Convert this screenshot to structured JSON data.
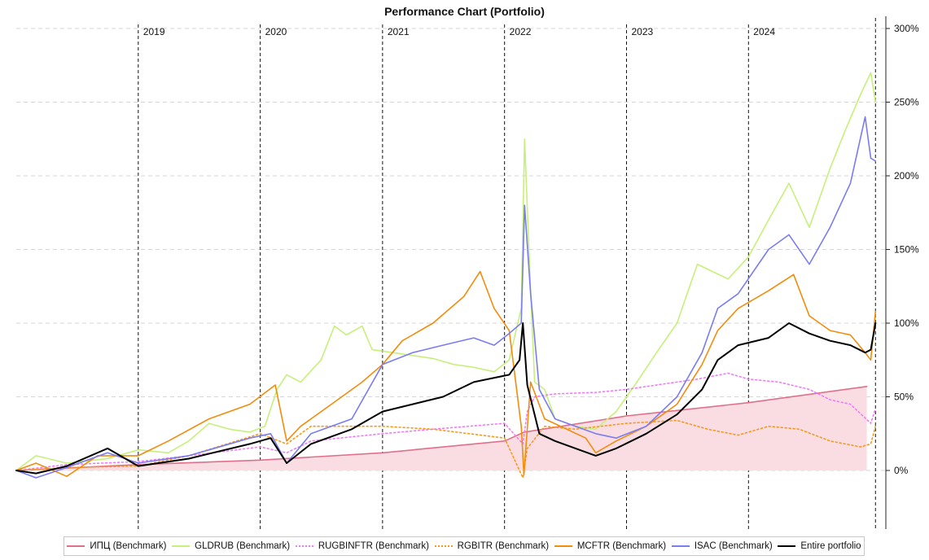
{
  "chart_data": {
    "type": "line",
    "title": "Performance Chart (Portfolio)",
    "x_range": [
      "2018-01-01",
      "2025-02-15"
    ],
    "ylim": [
      -40,
      300
    ],
    "y_ticks": [
      0,
      50,
      100,
      150,
      200,
      250,
      300
    ],
    "y_tick_labels": [
      "0%",
      "50%",
      "100%",
      "150%",
      "200%",
      "250%",
      "300%"
    ],
    "y_unit": "%",
    "year_markers": [
      {
        "label": "2019",
        "date": "2019-01-01"
      },
      {
        "label": "2020",
        "date": "2020-01-01"
      },
      {
        "label": "2021",
        "date": "2021-01-01"
      },
      {
        "label": "2022",
        "date": "2022-01-01"
      },
      {
        "label": "2023",
        "date": "2023-01-01"
      },
      {
        "label": "2024",
        "date": "2024-01-01"
      }
    ],
    "end_marker_date": "2025-01-15",
    "grid": true,
    "legend_position": "bottom",
    "series": [
      {
        "name": "ИПЦ (Benchmark)",
        "color": "#e0708a",
        "style": "solid",
        "fill": "#f9dde3",
        "points": [
          [
            "2018-01-01",
            0
          ],
          [
            "2019-01-01",
            4
          ],
          [
            "2020-01-01",
            7
          ],
          [
            "2021-01-01",
            12
          ],
          [
            "2022-01-01",
            20
          ],
          [
            "2022-03-01",
            26
          ],
          [
            "2023-01-01",
            37
          ],
          [
            "2024-01-01",
            46
          ],
          [
            "2024-12-20",
            57
          ]
        ]
      },
      {
        "name": "GLDRUB (Benchmark)",
        "color": "#c6f07a",
        "style": "solid",
        "points": [
          [
            "2018-01-01",
            0
          ],
          [
            "2018-03-01",
            10
          ],
          [
            "2018-06-01",
            5
          ],
          [
            "2018-10-01",
            8
          ],
          [
            "2019-01-01",
            14
          ],
          [
            "2019-04-01",
            12
          ],
          [
            "2019-06-01",
            20
          ],
          [
            "2019-08-01",
            32
          ],
          [
            "2019-10-01",
            28
          ],
          [
            "2019-12-01",
            26
          ],
          [
            "2020-01-15",
            30
          ],
          [
            "2020-02-20",
            55
          ],
          [
            "2020-03-20",
            65
          ],
          [
            "2020-05-01",
            60
          ],
          [
            "2020-07-01",
            75
          ],
          [
            "2020-08-10",
            98
          ],
          [
            "2020-09-15",
            92
          ],
          [
            "2020-11-01",
            98
          ],
          [
            "2020-12-01",
            82
          ],
          [
            "2021-02-01",
            80
          ],
          [
            "2021-04-01",
            78
          ],
          [
            "2021-06-01",
            76
          ],
          [
            "2021-08-01",
            72
          ],
          [
            "2021-10-01",
            70
          ],
          [
            "2021-12-01",
            67
          ],
          [
            "2022-01-15",
            75
          ],
          [
            "2022-02-20",
            110
          ],
          [
            "2022-03-02",
            225
          ],
          [
            "2022-03-15",
            150
          ],
          [
            "2022-04-01",
            60
          ],
          [
            "2022-05-01",
            55
          ],
          [
            "2022-06-01",
            35
          ],
          [
            "2022-08-01",
            30
          ],
          [
            "2022-10-01",
            28
          ],
          [
            "2022-12-01",
            40
          ],
          [
            "2023-02-01",
            60
          ],
          [
            "2023-04-01",
            80
          ],
          [
            "2023-06-01",
            100
          ],
          [
            "2023-08-01",
            140
          ],
          [
            "2023-09-15",
            135
          ],
          [
            "2023-11-01",
            130
          ],
          [
            "2024-01-01",
            145
          ],
          [
            "2024-03-01",
            170
          ],
          [
            "2024-05-01",
            195
          ],
          [
            "2024-07-01",
            165
          ],
          [
            "2024-09-01",
            205
          ],
          [
            "2024-10-15",
            230
          ],
          [
            "2024-12-01",
            255
          ],
          [
            "2025-01-01",
            270
          ],
          [
            "2025-01-15",
            250
          ]
        ]
      },
      {
        "name": "RUGBINFTR (Benchmark)",
        "color": "#f07cf5",
        "style": "dotted",
        "points": [
          [
            "2018-01-01",
            0
          ],
          [
            "2018-06-01",
            4
          ],
          [
            "2019-01-01",
            6
          ],
          [
            "2019-06-01",
            10
          ],
          [
            "2020-01-01",
            16
          ],
          [
            "2020-03-20",
            12
          ],
          [
            "2020-06-01",
            20
          ],
          [
            "2021-01-01",
            25
          ],
          [
            "2021-06-01",
            28
          ],
          [
            "2022-01-01",
            32
          ],
          [
            "2022-02-25",
            18
          ],
          [
            "2022-03-10",
            40
          ],
          [
            "2022-04-01",
            50
          ],
          [
            "2022-06-01",
            52
          ],
          [
            "2022-10-01",
            53
          ],
          [
            "2023-01-01",
            55
          ],
          [
            "2023-04-01",
            58
          ],
          [
            "2023-08-01",
            62
          ],
          [
            "2023-11-01",
            66
          ],
          [
            "2024-01-01",
            62
          ],
          [
            "2024-04-01",
            60
          ],
          [
            "2024-07-01",
            55
          ],
          [
            "2024-09-01",
            48
          ],
          [
            "2024-11-01",
            45
          ],
          [
            "2025-01-01",
            32
          ],
          [
            "2025-01-15",
            42
          ]
        ]
      },
      {
        "name": "RGBITR (Benchmark)",
        "color": "#f59a1e",
        "style": "dotted",
        "points": [
          [
            "2018-01-01",
            0
          ],
          [
            "2018-06-01",
            2
          ],
          [
            "2019-01-01",
            3
          ],
          [
            "2019-06-01",
            10
          ],
          [
            "2020-01-01",
            25
          ],
          [
            "2020-03-20",
            18
          ],
          [
            "2020-06-01",
            30
          ],
          [
            "2021-01-01",
            30
          ],
          [
            "2021-06-01",
            28
          ],
          [
            "2022-01-01",
            22
          ],
          [
            "2022-02-25",
            -5
          ],
          [
            "2022-03-10",
            15
          ],
          [
            "2022-05-01",
            30
          ],
          [
            "2022-08-01",
            28
          ],
          [
            "2023-01-01",
            32
          ],
          [
            "2023-06-01",
            34
          ],
          [
            "2023-09-01",
            28
          ],
          [
            "2023-12-01",
            24
          ],
          [
            "2024-03-01",
            30
          ],
          [
            "2024-06-01",
            28
          ],
          [
            "2024-09-01",
            20
          ],
          [
            "2024-12-01",
            16
          ],
          [
            "2025-01-01",
            18
          ],
          [
            "2025-01-15",
            30
          ]
        ]
      },
      {
        "name": "MCFTR (Benchmark)",
        "color": "#f28c0c",
        "style": "solid",
        "points": [
          [
            "2018-01-01",
            0
          ],
          [
            "2018-03-01",
            5
          ],
          [
            "2018-06-01",
            -4
          ],
          [
            "2018-09-01",
            10
          ],
          [
            "2019-01-01",
            10
          ],
          [
            "2019-04-01",
            20
          ],
          [
            "2019-08-01",
            35
          ],
          [
            "2019-12-01",
            45
          ],
          [
            "2020-02-15",
            58
          ],
          [
            "2020-03-20",
            20
          ],
          [
            "2020-05-01",
            30
          ],
          [
            "2020-08-01",
            45
          ],
          [
            "2020-11-01",
            60
          ],
          [
            "2021-01-01",
            72
          ],
          [
            "2021-03-01",
            88
          ],
          [
            "2021-06-01",
            100
          ],
          [
            "2021-09-01",
            118
          ],
          [
            "2021-10-20",
            135
          ],
          [
            "2021-12-01",
            110
          ],
          [
            "2022-01-15",
            95
          ],
          [
            "2022-02-20",
            30
          ],
          [
            "2022-02-28",
            -3
          ],
          [
            "2022-03-20",
            60
          ],
          [
            "2022-05-01",
            35
          ],
          [
            "2022-09-01",
            22
          ],
          [
            "2022-10-01",
            12
          ],
          [
            "2022-12-01",
            20
          ],
          [
            "2023-03-01",
            30
          ],
          [
            "2023-06-01",
            45
          ],
          [
            "2023-08-15",
            72
          ],
          [
            "2023-10-01",
            95
          ],
          [
            "2023-12-01",
            110
          ],
          [
            "2024-03-01",
            122
          ],
          [
            "2024-05-15",
            133
          ],
          [
            "2024-07-01",
            105
          ],
          [
            "2024-09-01",
            95
          ],
          [
            "2024-11-01",
            92
          ],
          [
            "2024-12-15",
            80
          ],
          [
            "2025-01-01",
            75
          ],
          [
            "2025-01-15",
            108
          ]
        ]
      },
      {
        "name": "ISAC (Benchmark)",
        "color": "#7a7cf2",
        "style": "solid",
        "points": [
          [
            "2018-01-01",
            0
          ],
          [
            "2018-03-01",
            -5
          ],
          [
            "2018-06-01",
            2
          ],
          [
            "2018-10-01",
            12
          ],
          [
            "2019-01-01",
            5
          ],
          [
            "2019-06-01",
            10
          ],
          [
            "2019-12-01",
            22
          ],
          [
            "2020-02-01",
            25
          ],
          [
            "2020-03-20",
            5
          ],
          [
            "2020-06-01",
            25
          ],
          [
            "2020-10-01",
            35
          ],
          [
            "2021-01-01",
            72
          ],
          [
            "2021-04-01",
            80
          ],
          [
            "2021-07-01",
            85
          ],
          [
            "2021-10-01",
            90
          ],
          [
            "2021-12-01",
            85
          ],
          [
            "2022-01-15",
            93
          ],
          [
            "2022-02-20",
            100
          ],
          [
            "2022-03-02",
            180
          ],
          [
            "2022-03-20",
            120
          ],
          [
            "2022-04-15",
            55
          ],
          [
            "2022-06-01",
            35
          ],
          [
            "2022-10-01",
            25
          ],
          [
            "2022-12-01",
            22
          ],
          [
            "2023-03-01",
            30
          ],
          [
            "2023-06-01",
            50
          ],
          [
            "2023-08-15",
            80
          ],
          [
            "2023-10-01",
            110
          ],
          [
            "2023-12-01",
            120
          ],
          [
            "2024-03-01",
            150
          ],
          [
            "2024-05-01",
            160
          ],
          [
            "2024-07-01",
            140
          ],
          [
            "2024-09-01",
            165
          ],
          [
            "2024-11-01",
            195
          ],
          [
            "2024-12-15",
            240
          ],
          [
            "2025-01-01",
            212
          ],
          [
            "2025-01-15",
            210
          ]
        ]
      },
      {
        "name": "Entire portfolio",
        "color": "#000000",
        "style": "solid",
        "width": 2,
        "points": [
          [
            "2018-01-01",
            0
          ],
          [
            "2018-03-01",
            -2
          ],
          [
            "2018-06-01",
            3
          ],
          [
            "2018-10-01",
            15
          ],
          [
            "2019-01-01",
            3
          ],
          [
            "2019-06-01",
            8
          ],
          [
            "2019-12-01",
            18
          ],
          [
            "2020-02-01",
            22
          ],
          [
            "2020-03-20",
            5
          ],
          [
            "2020-06-01",
            18
          ],
          [
            "2020-10-01",
            28
          ],
          [
            "2021-01-01",
            40
          ],
          [
            "2021-04-01",
            45
          ],
          [
            "2021-07-01",
            50
          ],
          [
            "2021-10-01",
            60
          ],
          [
            "2022-01-15",
            65
          ],
          [
            "2022-02-15",
            75
          ],
          [
            "2022-02-25",
            100
          ],
          [
            "2022-03-10",
            58
          ],
          [
            "2022-04-15",
            25
          ],
          [
            "2022-06-01",
            20
          ],
          [
            "2022-10-01",
            10
          ],
          [
            "2022-12-01",
            15
          ],
          [
            "2023-03-01",
            25
          ],
          [
            "2023-06-01",
            38
          ],
          [
            "2023-08-15",
            55
          ],
          [
            "2023-10-01",
            75
          ],
          [
            "2023-12-01",
            85
          ],
          [
            "2024-03-01",
            90
          ],
          [
            "2024-05-01",
            100
          ],
          [
            "2024-07-01",
            93
          ],
          [
            "2024-09-01",
            88
          ],
          [
            "2024-11-01",
            85
          ],
          [
            "2024-12-15",
            80
          ],
          [
            "2025-01-01",
            82
          ],
          [
            "2025-01-15",
            100
          ]
        ]
      }
    ]
  }
}
